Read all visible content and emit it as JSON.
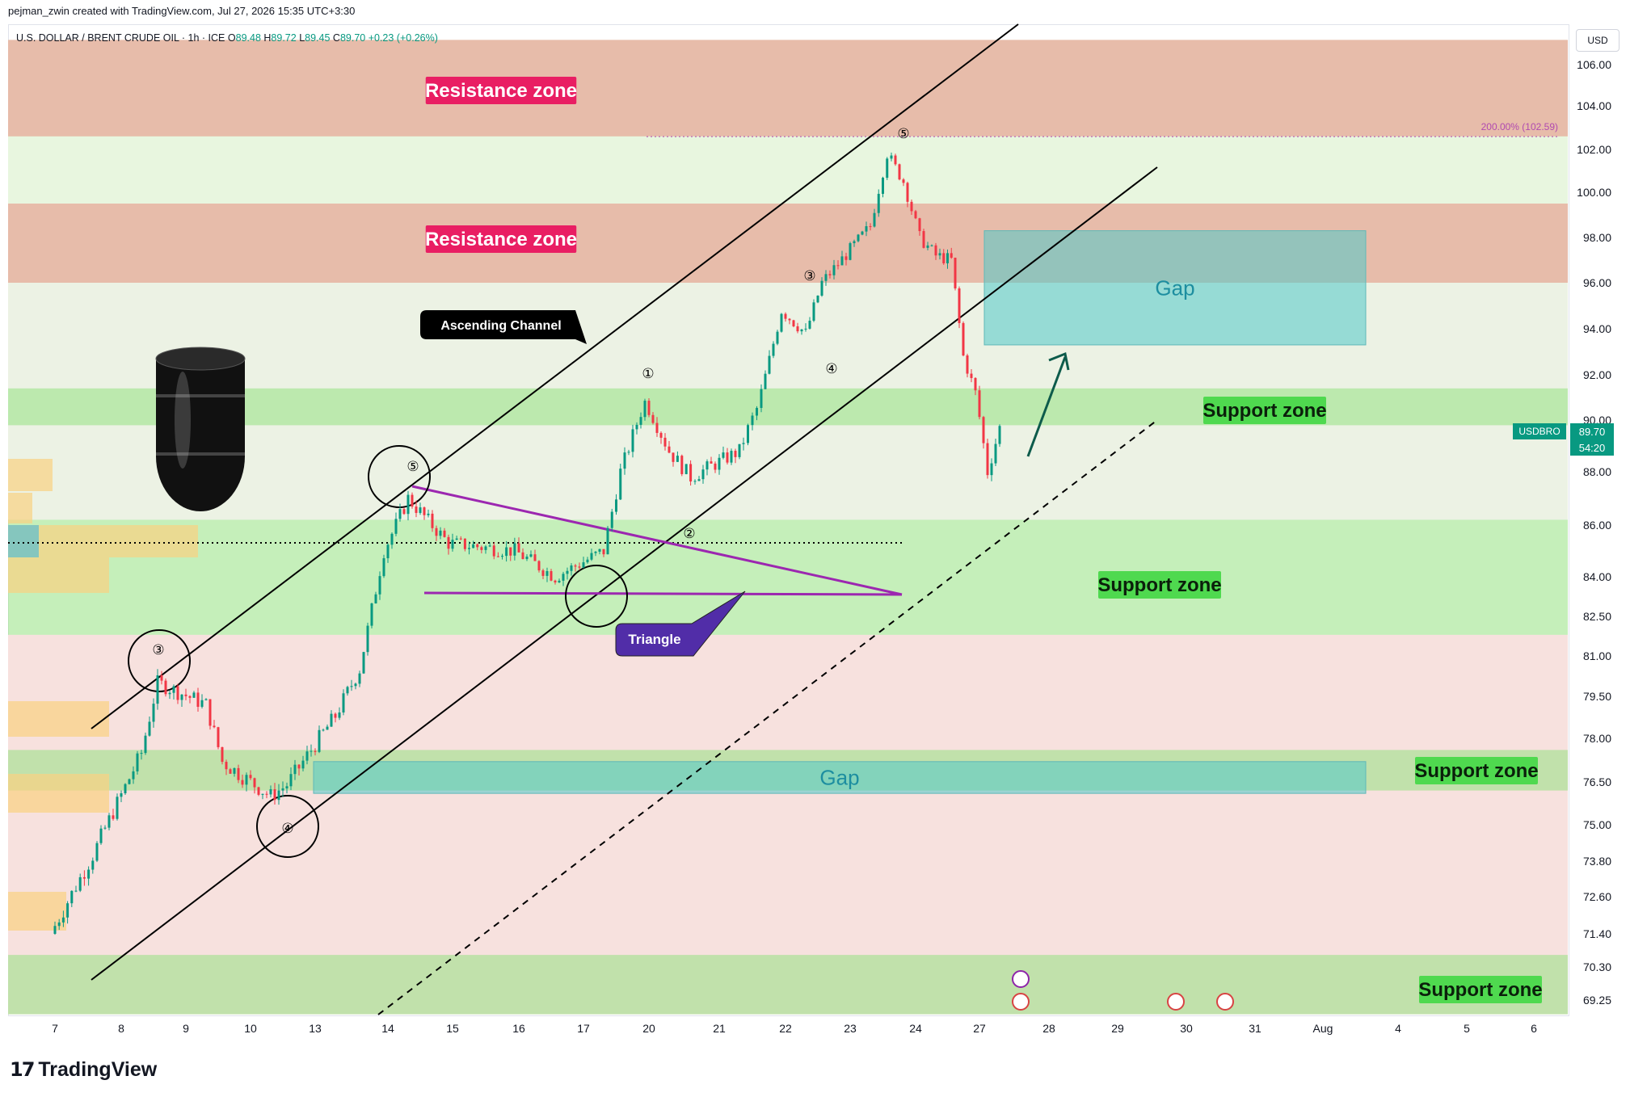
{
  "header": {
    "credit": "pejman_zwin created with TradingView.com, Jul 27, 2026 15:35 UTC+3:30"
  },
  "symbol": {
    "name": "U.S. DOLLAR / BRENT CRUDE OIL · 1h · ICE",
    "open_label": "O",
    "open": "89.48",
    "high_label": "H",
    "high": "89.72",
    "low_label": "L",
    "low": "89.45",
    "close_label": "C",
    "close": "89.70",
    "change": "+0.23 (+0.26%)"
  },
  "currency": "USD",
  "last_price": {
    "symbol": "USDBRO",
    "price": "89.70",
    "countdown": "54:20"
  },
  "fib_label": "200.00% (102.59)",
  "brand": "TradingView",
  "colors": {
    "up": "#089981",
    "down": "#f23645",
    "resistance_fill": "#e5a59a",
    "support_fill": "#a8e39a",
    "gap_fill": "#5fd0c9",
    "triangle": "#9c27b0",
    "label_resistance": "#e91e63",
    "label_support": "#4fd94f",
    "label_triangle": "#512da8"
  },
  "chart_data": {
    "type": "candlestick",
    "y_axis_ticks": [
      "106.00",
      "104.00",
      "102.00",
      "100.00",
      "98.00",
      "96.00",
      "94.00",
      "92.00",
      "90.00",
      "88.00",
      "86.00",
      "84.00",
      "82.50",
      "81.00",
      "79.50",
      "78.00",
      "76.50",
      "75.00",
      "73.80",
      "72.60",
      "71.40",
      "70.30",
      "69.25"
    ],
    "x_axis_ticks": [
      "7",
      "8",
      "9",
      "10",
      "13",
      "14",
      "15",
      "16",
      "17",
      "20",
      "21",
      "22",
      "23",
      "24",
      "27",
      "28",
      "29",
      "30",
      "31",
      "Aug",
      "4",
      "5",
      "6"
    ],
    "zones": [
      {
        "kind": "resistance",
        "label": "Resistance zone",
        "low": 102.6,
        "high": 107.2
      },
      {
        "kind": "resistance",
        "label": "Resistance zone",
        "low": 96.0,
        "high": 99.5
      },
      {
        "kind": "support",
        "label": "Support zone",
        "low": 89.8,
        "high": 91.4
      },
      {
        "kind": "support",
        "label": "Support zone",
        "low": 81.8,
        "high": 86.2
      },
      {
        "kind": "support",
        "label": "Support zone",
        "low": 76.2,
        "high": 77.6
      },
      {
        "kind": "support",
        "label": "Support zone",
        "low": 68.8,
        "high": 70.7
      }
    ],
    "gaps": [
      {
        "label": "Gap",
        "low": 93.3,
        "high": 98.3,
        "from": "Jul 27",
        "to": "Jul 31"
      },
      {
        "label": "Gap",
        "low": 76.1,
        "high": 77.2,
        "from": "Jul 13",
        "to": "Jul 31"
      }
    ],
    "annotations": [
      "Ascending Channel",
      "Triangle"
    ],
    "wave_labels": [
      "①",
      "②",
      "③",
      "④",
      "⑤",
      "③",
      "④",
      "⑤"
    ],
    "price_series": [
      [
        "Jul 7",
        71.4
      ],
      [
        "Jul 8",
        74.0
      ],
      [
        "Jul 8",
        77.5
      ],
      [
        "Jul 9",
        80.0
      ],
      [
        "Jul 9",
        79.2
      ],
      [
        "Jul 10",
        77.2
      ],
      [
        "Jul 10",
        76.0
      ],
      [
        "Jul 13",
        76.4
      ],
      [
        "Jul 13",
        78.8
      ],
      [
        "Jul 14",
        80.5
      ],
      [
        "Jul 14",
        85.0
      ],
      [
        "Jul 14",
        87.0
      ],
      [
        "Jul 15",
        85.3
      ],
      [
        "Jul 16",
        85.0
      ],
      [
        "Jul 17",
        84.0
      ],
      [
        "Jul 17",
        85.0
      ],
      [
        "Jul 20",
        88.0
      ],
      [
        "Jul 20",
        90.8
      ],
      [
        "Jul 20",
        88.8
      ],
      [
        "Jul 21",
        87.8
      ],
      [
        "Jul 21",
        88.8
      ],
      [
        "Jul 22",
        90.5
      ],
      [
        "Jul 22",
        94.8
      ],
      [
        "Jul 22",
        93.8
      ],
      [
        "Jul 23",
        96.0
      ],
      [
        "Jul 23",
        98.5
      ],
      [
        "Jul 24",
        101.8
      ],
      [
        "Jul 24",
        100.5
      ],
      [
        "Jul 24",
        98.0
      ],
      [
        "Jul 24",
        97.2
      ],
      [
        "Jul 27",
        97.0
      ],
      [
        "Jul 27",
        92.8
      ],
      [
        "Jul 27",
        91.2
      ],
      [
        "Jul 27",
        88.0
      ],
      [
        "Jul 27",
        89.7
      ]
    ]
  }
}
